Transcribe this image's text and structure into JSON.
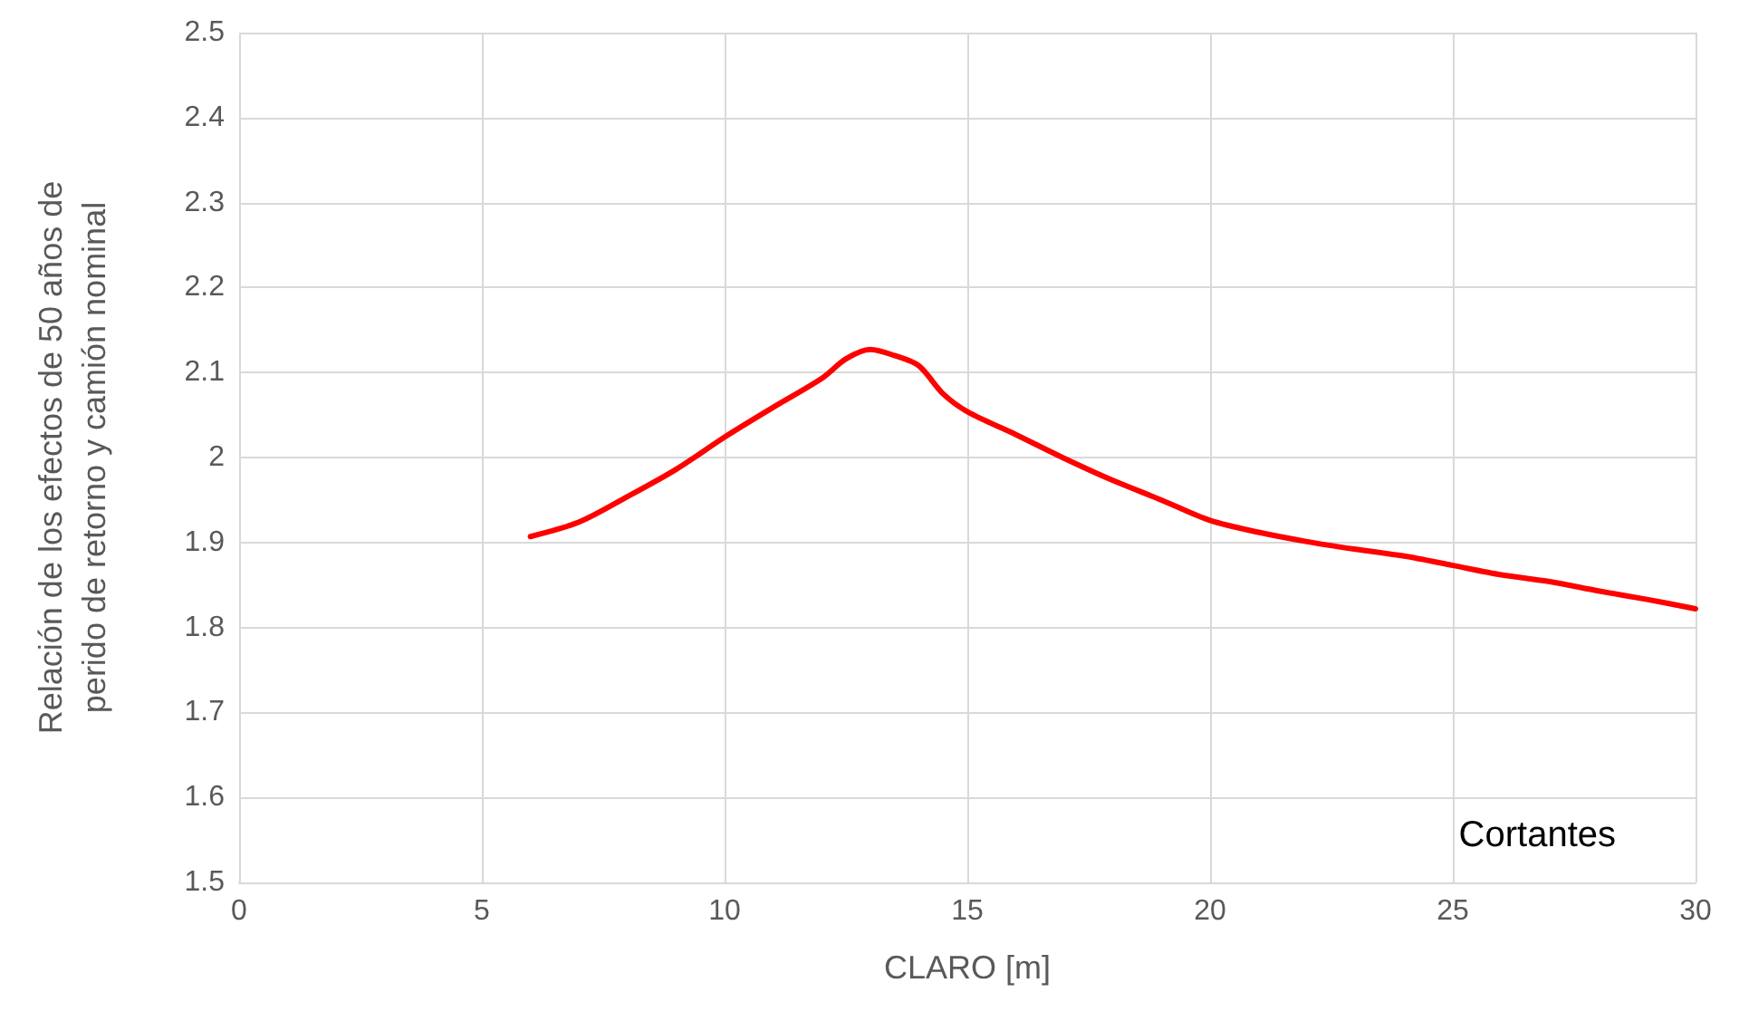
{
  "chart_data": {
    "type": "line",
    "xlabel": "CLARO [m]",
    "ylabel": "Relación de los efectos de 50 años de\nperido de retorno y camión nominal",
    "annotations": [
      "Cortantes"
    ],
    "x": [
      6,
      7,
      8,
      9,
      10,
      11,
      12,
      12.5,
      13,
      13.5,
      14,
      14.5,
      15,
      16,
      17,
      18,
      19,
      20,
      21,
      22,
      23,
      24,
      25,
      26,
      27,
      28,
      29,
      30
    ],
    "series": [
      {
        "color": "#ff0000",
        "values": [
          1.907,
          1.924,
          1.954,
          1.986,
          2.024,
          2.059,
          2.093,
          2.116,
          2.127,
          2.12,
          2.108,
          2.075,
          2.054,
          2.027,
          1.999,
          1.973,
          1.95,
          1.926,
          1.912,
          1.901,
          1.892,
          1.884,
          1.873,
          1.862,
          1.854,
          1.843,
          1.833,
          1.822
        ]
      }
    ],
    "xlim": [
      0,
      30
    ],
    "xticks": [
      0,
      5,
      10,
      15,
      20,
      25,
      30
    ],
    "ylim": [
      1.5,
      2.5
    ],
    "yticks": [
      {
        "value": 1.5,
        "label": "1.5"
      },
      {
        "value": 1.6,
        "label": "1.6"
      },
      {
        "value": 1.7,
        "label": "1.7"
      },
      {
        "value": 1.8,
        "label": "1.8"
      },
      {
        "value": 1.9,
        "label": "1.9"
      },
      {
        "value": 2,
        "label": "2"
      },
      {
        "value": 2.1,
        "label": "2.1"
      },
      {
        "value": 2.2,
        "label": "2.2"
      },
      {
        "value": 2.3,
        "label": "2.3"
      },
      {
        "value": 2.4,
        "label": "2.4"
      },
      {
        "value": 2.5,
        "label": "2.5"
      }
    ],
    "grid": true,
    "marker": "none",
    "line_style": "solid"
  }
}
